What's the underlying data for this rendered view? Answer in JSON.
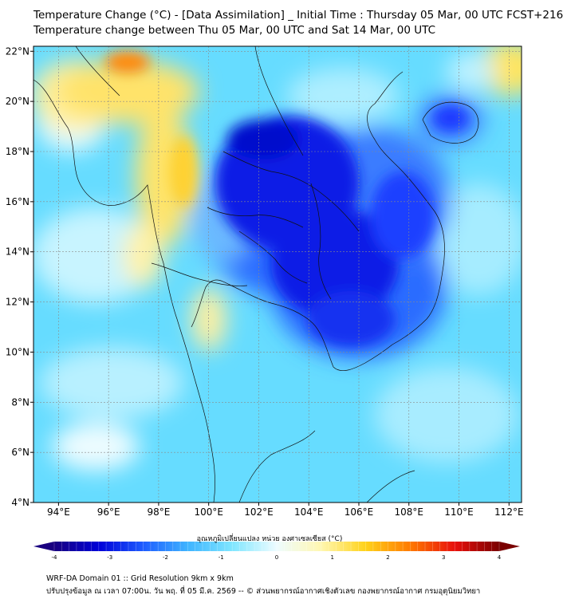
{
  "title_line1": "Temperature Change (°C) - [Data Assimilation] _ Initial Time : Thursday 05 Mar, 00 UTC FCST+216",
  "title_line2": "Temperature change between Thu 05 Mar, 00 UTC and Sat 14 Mar, 00 UTC",
  "map": {
    "lon_range": [
      93,
      112.5
    ],
    "lat_range": [
      4,
      22.2
    ],
    "x_ticks": [
      {
        "value": 94,
        "label": "94°E"
      },
      {
        "value": 96,
        "label": "96°E"
      },
      {
        "value": 98,
        "label": "98°E"
      },
      {
        "value": 100,
        "label": "100°E"
      },
      {
        "value": 102,
        "label": "102°E"
      },
      {
        "value": 104,
        "label": "104°E"
      },
      {
        "value": 106,
        "label": "106°E"
      },
      {
        "value": 108,
        "label": "108°E"
      },
      {
        "value": 110,
        "label": "110°E"
      },
      {
        "value": 112,
        "label": "112°E"
      }
    ],
    "y_ticks": [
      {
        "value": 22,
        "label": "22°N"
      },
      {
        "value": 20,
        "label": "20°N"
      },
      {
        "value": 18,
        "label": "18°N"
      },
      {
        "value": 16,
        "label": "16°N"
      },
      {
        "value": 14,
        "label": "14°N"
      },
      {
        "value": 12,
        "label": "12°N"
      },
      {
        "value": 10,
        "label": "10°N"
      },
      {
        "value": 8,
        "label": "8°N"
      },
      {
        "value": 6,
        "label": "6°N"
      },
      {
        "value": 4,
        "label": "4°N"
      }
    ],
    "gridlines": true
  },
  "colorbar": {
    "title": "อุณหภูมิเปลี่ยนแปลง หน่วย องศาเซลเซียส (°C)",
    "range": [
      -4,
      4
    ],
    "ticks": [
      {
        "value": -4,
        "label": "-4"
      },
      {
        "value": -3,
        "label": "-3"
      },
      {
        "value": -2,
        "label": "-2"
      },
      {
        "value": -1,
        "label": "-1"
      },
      {
        "value": 0,
        "label": "0"
      },
      {
        "value": 1,
        "label": "1"
      },
      {
        "value": 2,
        "label": "2"
      },
      {
        "value": 3,
        "label": "3"
      },
      {
        "value": 4,
        "label": "4"
      }
    ],
    "colors": [
      "#1a0080",
      "#0000d8",
      "#1e5cff",
      "#3fb4ff",
      "#7fe6ff",
      "#eefcff",
      "#fff7b0",
      "#ffd21a",
      "#ff7a00",
      "#e8100c",
      "#7a0000"
    ]
  },
  "footer_line1": "WRF-DA Domain 01 :: Grid Resolution 9km x 9km",
  "footer_line2": "ปรับปรุงข้อมูล ณ เวลา 07:00น. วัน พฤ. ที่ 05 มี.ค. 2569 -- © ส่วนพยากรณ์อากาศเชิงตัวเลข กองพยากรณ์อากาศ กรมอุตุนิยมวิทยา"
}
